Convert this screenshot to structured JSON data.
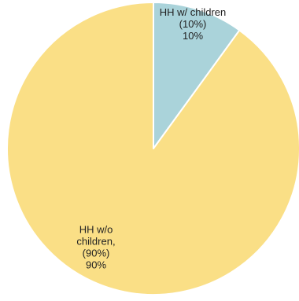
{
  "chart_data": {
    "type": "pie",
    "categories": [
      "HH w/ children",
      "HH w/o children"
    ],
    "values": [
      10,
      90
    ],
    "percent_labels": [
      "(10%)",
      "(90%)"
    ],
    "value_labels": [
      "10%",
      "90%"
    ],
    "slice_label_lines": [
      [
        "HH w/ children",
        "(10%)",
        "10%"
      ],
      [
        "HH w/o",
        "children,",
        "(90%)",
        "90%"
      ]
    ],
    "colors": [
      "#aad3da",
      "#fadf86"
    ],
    "start_angle_deg": 0,
    "direction": "clockwise",
    "slice_border_color": "#ffffff",
    "title": "",
    "legend": "none"
  }
}
